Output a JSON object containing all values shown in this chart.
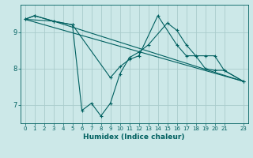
{
  "xlabel": "Humidex (Indice chaleur)",
  "bg_color": "#cce8e8",
  "grid_color": "#aacccc",
  "line_color": "#006060",
  "xlim": [
    -0.5,
    23.5
  ],
  "ylim": [
    6.5,
    9.75
  ],
  "yticks": [
    7,
    8,
    9
  ],
  "xtick_vals": [
    0,
    1,
    2,
    3,
    4,
    5,
    6,
    7,
    8,
    9,
    10,
    11,
    12,
    13,
    14,
    15,
    16,
    17,
    18,
    19,
    20,
    21,
    23
  ],
  "xtick_labels": [
    "0",
    "1",
    "2",
    "3",
    "4",
    "5",
    "6",
    "7",
    "8",
    "9",
    "10",
    "11",
    "12",
    "13",
    "14",
    "15",
    "16",
    "17",
    "18",
    "19",
    "20",
    "21",
    "23"
  ],
  "series": [
    {
      "x": [
        0,
        1,
        3,
        5,
        9,
        10,
        11,
        12,
        14,
        16,
        17,
        18,
        19,
        20,
        21,
        23
      ],
      "y": [
        9.35,
        9.45,
        9.3,
        9.2,
        7.75,
        8.05,
        8.25,
        8.35,
        9.45,
        8.65,
        8.35,
        8.35,
        8.0,
        7.95,
        7.95,
        7.65
      ],
      "marker": true
    },
    {
      "x": [
        0,
        1,
        3,
        5,
        6,
        7,
        8,
        9,
        10,
        11,
        12,
        13,
        15,
        16,
        17,
        18,
        19,
        20,
        21,
        23
      ],
      "y": [
        9.35,
        9.45,
        9.3,
        9.2,
        6.85,
        7.05,
        6.7,
        7.05,
        7.85,
        8.3,
        8.45,
        8.65,
        9.25,
        9.05,
        8.65,
        8.35,
        8.35,
        8.35,
        7.95,
        7.65
      ],
      "marker": true
    },
    {
      "x": [
        0,
        3,
        23
      ],
      "y": [
        9.35,
        9.3,
        7.65
      ],
      "marker": false
    },
    {
      "x": [
        0,
        23
      ],
      "y": [
        9.35,
        7.65
      ],
      "marker": false
    }
  ]
}
